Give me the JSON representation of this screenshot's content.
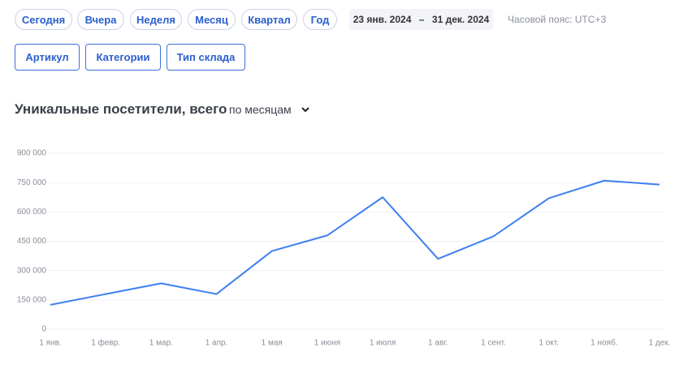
{
  "periods": [
    "Сегодня",
    "Вчера",
    "Неделя",
    "Месяц",
    "Квартал",
    "Год"
  ],
  "date_range": {
    "start": "23 янв. 2024",
    "separator": "–",
    "end": "31 дек. 2024"
  },
  "timezone": "Часовой пояс: UTC+3",
  "filters": [
    "Артикул",
    "Категории",
    "Тип склада"
  ],
  "granularity": "по месяцам",
  "chart_data": {
    "type": "line",
    "title": "Уникальные посетители, всего",
    "categories": [
      "1 янв.",
      "1 февр.",
      "1 мар.",
      "1 апр.",
      "1 мая",
      "1 июня",
      "1 июля",
      "1 авг.",
      "1 сент.",
      "1 окт.",
      "1 нояб.",
      "1 дек."
    ],
    "series": [
      {
        "color": "#3f7ff0",
        "values": [
          125000,
          180000,
          235000,
          180000,
          400000,
          480000,
          675000,
          360000,
          475000,
          670000,
          760000,
          740000
        ]
      }
    ],
    "ylim": [
      0,
      900000
    ],
    "yticks": [
      0,
      {
        "value": 150000,
        "label": "150 000"
      },
      {
        "value": 300000,
        "label": "300 000"
      },
      {
        "value": 450000,
        "label": "450 000"
      },
      {
        "value": 600000,
        "label": "600 000"
      },
      {
        "value": 750000,
        "label": "750 000"
      },
      {
        "value": 900000,
        "label": "900 000"
      }
    ],
    "grid": true
  }
}
